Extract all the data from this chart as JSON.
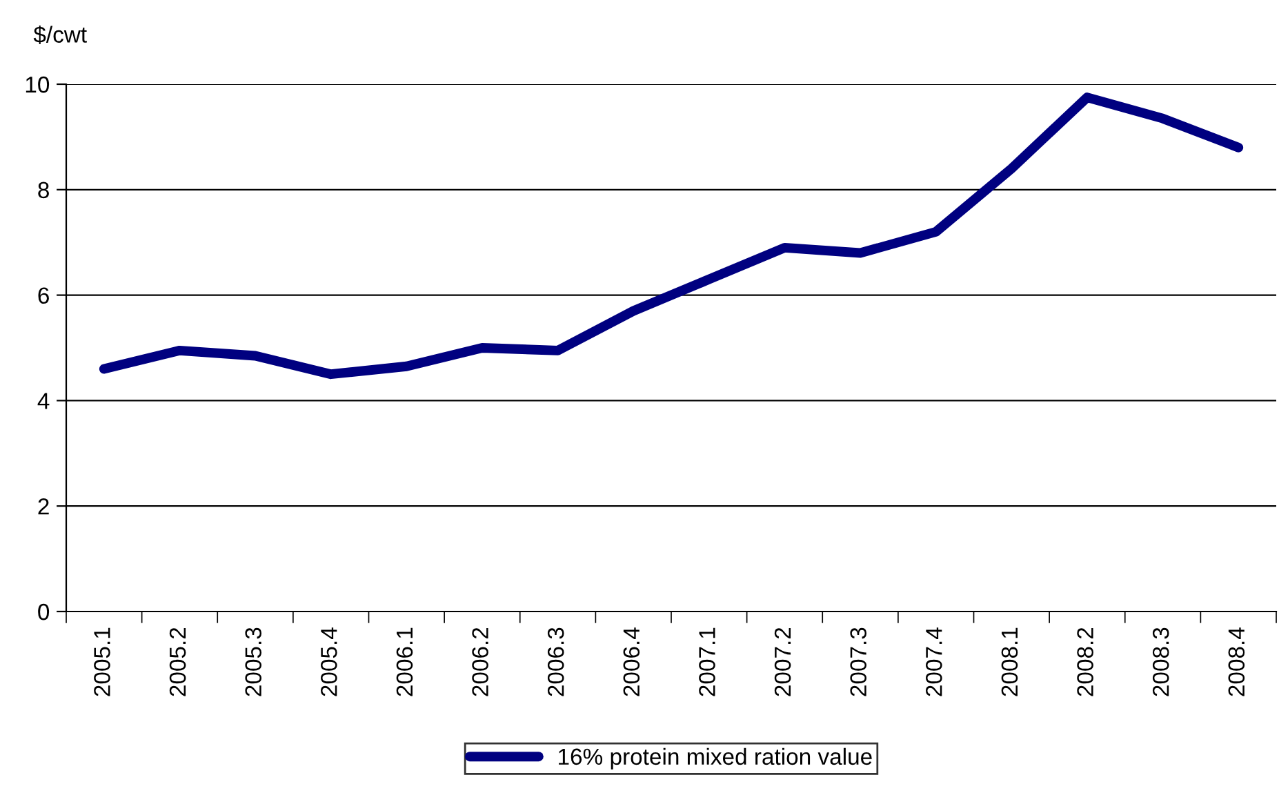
{
  "chart_data": {
    "type": "line",
    "ylabel": "$/cwt",
    "categories": [
      "2005.1",
      "2005.2",
      "2005.3",
      "2005.4",
      "2006.1",
      "2006.2",
      "2006.3",
      "2006.4",
      "2007.1",
      "2007.2",
      "2007.3",
      "2007.4",
      "2008.1",
      "2008.2",
      "2008.3",
      "2008.4"
    ],
    "series": [
      {
        "name": "16% protein mixed ration value",
        "color": "#000080",
        "values": [
          4.6,
          4.95,
          4.85,
          4.5,
          4.65,
          5.0,
          4.95,
          5.7,
          6.3,
          6.9,
          6.8,
          7.2,
          8.4,
          9.75,
          9.35,
          8.8
        ]
      }
    ],
    "ylim": [
      0,
      10
    ],
    "yticks": [
      0,
      2,
      4,
      6,
      8,
      10
    ],
    "grid": "y",
    "legend": "bottom",
    "marker": "none",
    "line_style": "solid"
  }
}
